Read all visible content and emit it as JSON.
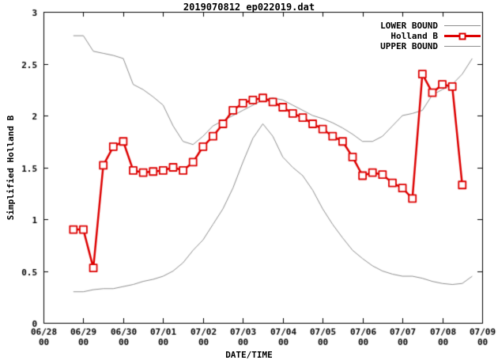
{
  "chart_data": {
    "type": "line",
    "title": "2019070812 ep022019.dat",
    "xlabel": "DATE/TIME",
    "ylabel": "Simplified Holland B",
    "xlim": [
      0,
      11
    ],
    "ylim": [
      0,
      3
    ],
    "grid": false,
    "legend_position": "top-right",
    "background": "#ffffff",
    "border_color": "#000000",
    "x_unit": "days since 06/28 00:00 (data points every 6 hours)",
    "x_start": 0.75,
    "x_step": 0.25,
    "x_ticks": [
      {
        "label": "06/28",
        "sub": "00"
      },
      {
        "label": "06/29",
        "sub": "00"
      },
      {
        "label": "06/30",
        "sub": "00"
      },
      {
        "label": "07/01",
        "sub": "00"
      },
      {
        "label": "07/02",
        "sub": "00"
      },
      {
        "label": "07/03",
        "sub": "00"
      },
      {
        "label": "07/04",
        "sub": "00"
      },
      {
        "label": "07/05",
        "sub": "00"
      },
      {
        "label": "07/06",
        "sub": "00"
      },
      {
        "label": "07/07",
        "sub": "00"
      },
      {
        "label": "07/08",
        "sub": "00"
      },
      {
        "label": "07/09",
        "sub": "00"
      }
    ],
    "y_ticks": [
      0,
      0.5,
      1,
      1.5,
      2,
      2.5,
      3
    ],
    "y_tick_labels": [
      "0",
      "0.5",
      "1",
      "1.5",
      "2",
      "2.5",
      "3"
    ],
    "series": [
      {
        "name": "LOWER BOUND",
        "color": "#8f8f8f",
        "width": 1,
        "marker": "none",
        "values": [
          0.3,
          0.3,
          0.32,
          0.33,
          0.33,
          0.35,
          0.37,
          0.4,
          0.42,
          0.45,
          0.5,
          0.58,
          0.7,
          0.8,
          0.95,
          1.1,
          1.3,
          1.55,
          1.78,
          1.92,
          1.8,
          1.6,
          1.5,
          1.42,
          1.28,
          1.1,
          0.95,
          0.82,
          0.7,
          0.62,
          0.55,
          0.5,
          0.47,
          0.45,
          0.45,
          0.43,
          0.4,
          0.38,
          0.37,
          0.38,
          0.45
        ]
      },
      {
        "name": "Holland B",
        "color": "#dd0000",
        "width": 2.5,
        "marker": "square",
        "values": [
          0.9,
          0.9,
          0.53,
          1.52,
          1.7,
          1.75,
          1.47,
          1.45,
          1.46,
          1.47,
          1.5,
          1.47,
          1.55,
          1.7,
          1.8,
          1.92,
          2.05,
          2.12,
          2.15,
          2.17,
          2.13,
          2.08,
          2.02,
          1.98,
          1.92,
          1.87,
          1.8,
          1.75,
          1.6,
          1.42,
          1.45,
          1.43,
          1.35,
          1.3,
          1.2,
          2.4,
          2.22,
          2.3,
          2.28,
          1.33
        ]
      },
      {
        "name": "UPPER BOUND",
        "color": "#8f8f8f",
        "width": 1,
        "marker": "none",
        "values": [
          2.77,
          2.77,
          2.62,
          2.6,
          2.58,
          2.55,
          2.3,
          2.25,
          2.18,
          2.1,
          1.9,
          1.75,
          1.72,
          1.8,
          1.9,
          1.95,
          2.0,
          2.05,
          2.1,
          2.15,
          2.17,
          2.15,
          2.1,
          2.05,
          2.0,
          1.97,
          1.93,
          1.88,
          1.82,
          1.75,
          1.75,
          1.8,
          1.9,
          2.0,
          2.02,
          2.05,
          2.2,
          2.25,
          2.3,
          2.4,
          2.55
        ]
      }
    ]
  }
}
